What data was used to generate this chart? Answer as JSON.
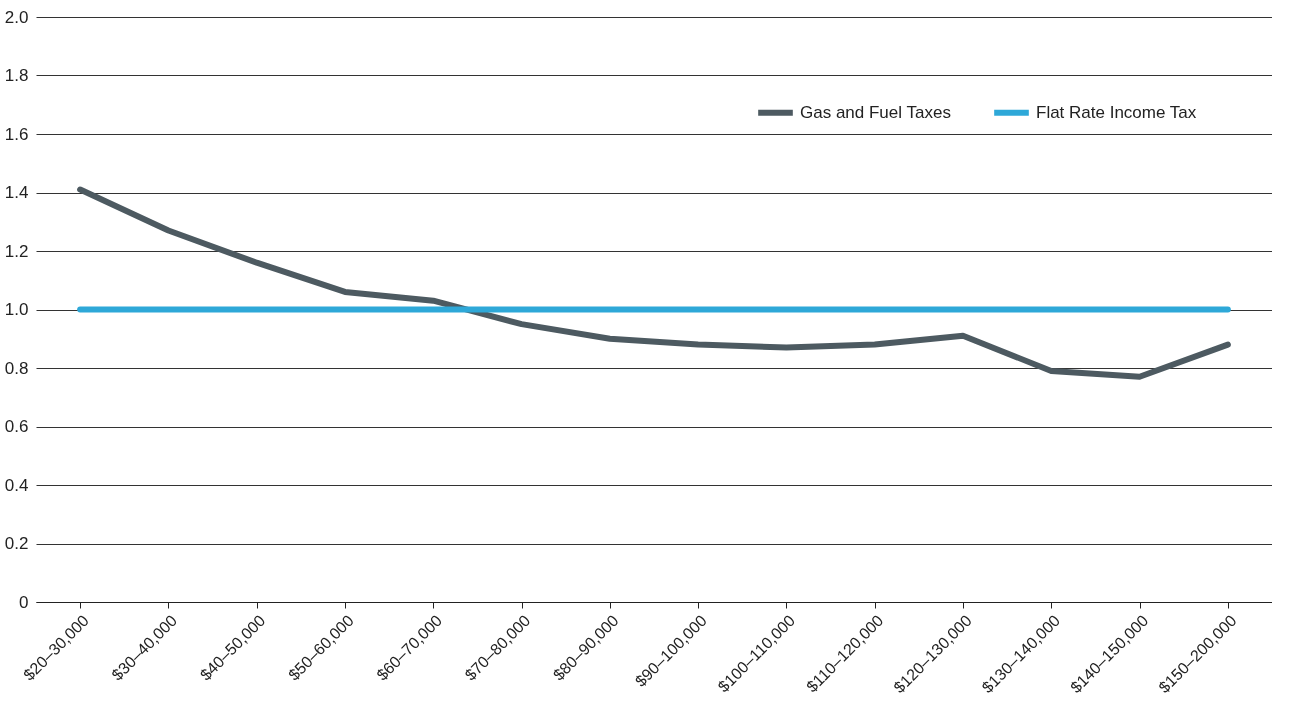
{
  "chart_data": {
    "type": "line",
    "categories": [
      "$20–30,000",
      "$30–40,000",
      "$40–50,000",
      "$50–60,000",
      "$60–70,000",
      "$70–80,000",
      "$80–90,000",
      "$90–100,000",
      "$100–110,000",
      "$110–120,000",
      "$120–130,000",
      "$130–140,000",
      "$140–150,000",
      "$150–200,000"
    ],
    "series": [
      {
        "name": "Gas and Fuel Taxes",
        "color": "#4d5a61",
        "values": [
          1.41,
          1.27,
          1.16,
          1.06,
          1.03,
          0.95,
          0.9,
          0.88,
          0.87,
          0.88,
          0.91,
          0.79,
          0.77,
          0.88
        ]
      },
      {
        "name": "Flat Rate Income Tax",
        "color": "#2ea8d8",
        "values": [
          1,
          1,
          1,
          1,
          1,
          1,
          1,
          1,
          1,
          1,
          1,
          1,
          1,
          1
        ]
      }
    ],
    "ylim": [
      0,
      2
    ],
    "yticks": [
      0,
      0.2,
      0.4,
      0.6,
      0.8,
      {
        "value": 1,
        "label": "1.0"
      },
      1.2,
      1.4,
      1.6,
      1.8,
      {
        "value": 2,
        "label": "2.0"
      }
    ],
    "grid": "y",
    "legend": "top right",
    "marker": "none",
    "line_style": "solid"
  }
}
